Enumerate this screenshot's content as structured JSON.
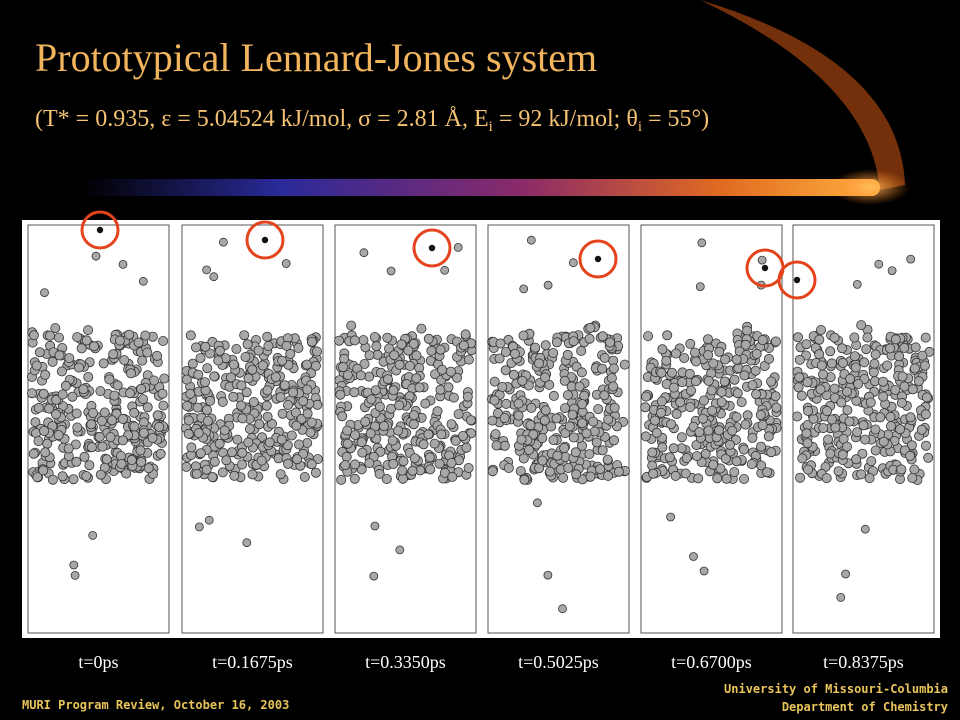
{
  "title": "Prototypical Lennard-Jones system",
  "subtitle": [
    "(T* = 0.935, ε = 5.04524 kJ/mol, σ = 2.81 Å, E",
    "i",
    " = 92 kJ/mol; θ",
    "i",
    " = 55°)"
  ],
  "frames": [
    "t=0ps",
    "t=0.1675ps",
    "t=0.3350ps",
    "t=0.5025ps",
    "t=0.6700ps",
    "t=0.8375ps"
  ],
  "footer": {
    "left": "MURI Program Review, October 16, 2003",
    "right": [
      "University of Missouri-Columbia",
      "Department of Chemistry"
    ]
  }
}
